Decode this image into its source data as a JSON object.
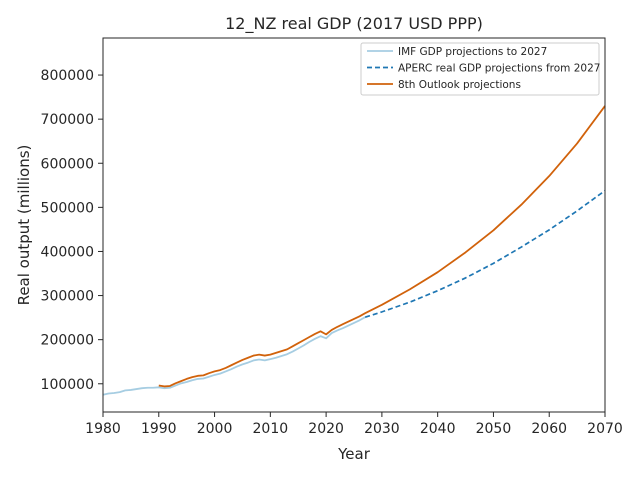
{
  "chart_data": {
    "type": "line",
    "title": "12_NZ real GDP (2017 USD PPP)",
    "xlabel": "Year",
    "ylabel": "Real output (millions)",
    "xlim": [
      1980,
      2070
    ],
    "ylim": [
      36000,
      884000
    ],
    "xticks": [
      1980,
      1990,
      2000,
      2010,
      2020,
      2030,
      2040,
      2050,
      2060,
      2070
    ],
    "yticks": [
      100000,
      200000,
      300000,
      400000,
      500000,
      600000,
      700000,
      800000
    ],
    "grid": false,
    "legend_position": "top-right",
    "series": [
      {
        "name": "IMF GDP projections to 2027",
        "color": "#a6cde2",
        "style": "solid",
        "x": [
          1980,
          1981,
          1982,
          1983,
          1984,
          1985,
          1986,
          1987,
          1988,
          1989,
          1990,
          1991,
          1992,
          1993,
          1994,
          1995,
          1996,
          1997,
          1998,
          1999,
          2000,
          2001,
          2002,
          2003,
          2004,
          2005,
          2006,
          2007,
          2008,
          2009,
          2010,
          2011,
          2012,
          2013,
          2014,
          2015,
          2016,
          2017,
          2018,
          2019,
          2020,
          2021,
          2022,
          2023,
          2024,
          2025,
          2026,
          2027
        ],
        "y": [
          75000,
          78000,
          79000,
          81000,
          85000,
          86000,
          88000,
          90000,
          91000,
          91000,
          92000,
          90000,
          91000,
          96000,
          101000,
          104000,
          108000,
          111000,
          112000,
          116000,
          120000,
          123000,
          128000,
          133000,
          139000,
          144000,
          148000,
          153000,
          155000,
          153000,
          156000,
          159000,
          163000,
          167000,
          173000,
          180000,
          187000,
          195000,
          202000,
          208000,
          203000,
          215000,
          221000,
          226000,
          232000,
          238000,
          244000,
          251000
        ]
      },
      {
        "name": "APERC real GDP projections from 2027",
        "color": "#1f77b4",
        "style": "dashed",
        "x": [
          2027,
          2030,
          2035,
          2040,
          2045,
          2050,
          2055,
          2060,
          2065,
          2070
        ],
        "y": [
          251000,
          263000,
          285000,
          311000,
          340000,
          373000,
          410000,
          449000,
          492000,
          538000
        ]
      },
      {
        "name": "8th Outlook projections",
        "color": "#d1620b",
        "style": "solid",
        "x": [
          1990,
          1991,
          1992,
          1993,
          1994,
          1995,
          1996,
          1997,
          1998,
          1999,
          2000,
          2001,
          2002,
          2003,
          2004,
          2005,
          2006,
          2007,
          2008,
          2009,
          2010,
          2011,
          2012,
          2013,
          2014,
          2015,
          2016,
          2017,
          2018,
          2019,
          2020,
          2021,
          2022,
          2023,
          2024,
          2025,
          2026,
          2027,
          2030,
          2035,
          2040,
          2045,
          2050,
          2055,
          2060,
          2065,
          2070
        ],
        "y": [
          96000,
          94000,
          95000,
          101000,
          106000,
          111000,
          115000,
          118000,
          119000,
          124000,
          128000,
          131000,
          136000,
          142000,
          148000,
          154000,
          159000,
          164000,
          166000,
          164000,
          166000,
          170000,
          174000,
          178000,
          185000,
          192000,
          199000,
          206000,
          213000,
          219000,
          212000,
          222000,
          229000,
          235000,
          241000,
          247000,
          253000,
          260000,
          279000,
          314000,
          353000,
          398000,
          448000,
          506000,
          571000,
          645000,
          730000
        ]
      }
    ]
  }
}
